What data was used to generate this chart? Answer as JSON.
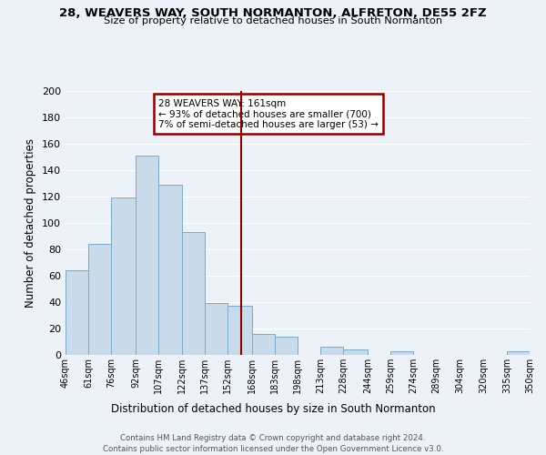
{
  "title": "28, WEAVERS WAY, SOUTH NORMANTON, ALFRETON, DE55 2FZ",
  "subtitle": "Size of property relative to detached houses in South Normanton",
  "xlabel": "Distribution of detached houses by size in South Normanton",
  "ylabel": "Number of detached properties",
  "footnote1": "Contains HM Land Registry data © Crown copyright and database right 2024.",
  "footnote2": "Contains public sector information licensed under the Open Government Licence v3.0.",
  "bin_edges": [
    46,
    61,
    76,
    92,
    107,
    122,
    137,
    152,
    168,
    183,
    198,
    213,
    228,
    244,
    259,
    274,
    289,
    304,
    320,
    335,
    350
  ],
  "bar_heights": [
    64,
    84,
    119,
    151,
    129,
    93,
    39,
    37,
    16,
    14,
    0,
    6,
    4,
    0,
    3,
    0,
    0,
    0,
    0,
    3
  ],
  "bar_color": "#c9daea",
  "bar_edge_color": "#7aaac8",
  "bg_color": "#edf2f8",
  "grid_color": "#ffffff",
  "vline_x": 161,
  "vline_color": "#8b0000",
  "annotation_title": "28 WEAVERS WAY: 161sqm",
  "annotation_line1": "← 93% of detached houses are smaller (700)",
  "annotation_line2": "7% of semi-detached houses are larger (53) →",
  "annotation_box_edge": "#8b0000",
  "annotation_bg": "#ffffff",
  "ylim": [
    0,
    200
  ],
  "yticks": [
    0,
    20,
    40,
    60,
    80,
    100,
    120,
    140,
    160,
    180,
    200
  ],
  "tick_labels": [
    "46sqm",
    "61sqm",
    "76sqm",
    "92sqm",
    "107sqm",
    "122sqm",
    "137sqm",
    "152sqm",
    "168sqm",
    "183sqm",
    "198sqm",
    "213sqm",
    "228sqm",
    "244sqm",
    "259sqm",
    "274sqm",
    "289sqm",
    "304sqm",
    "320sqm",
    "335sqm",
    "350sqm"
  ]
}
